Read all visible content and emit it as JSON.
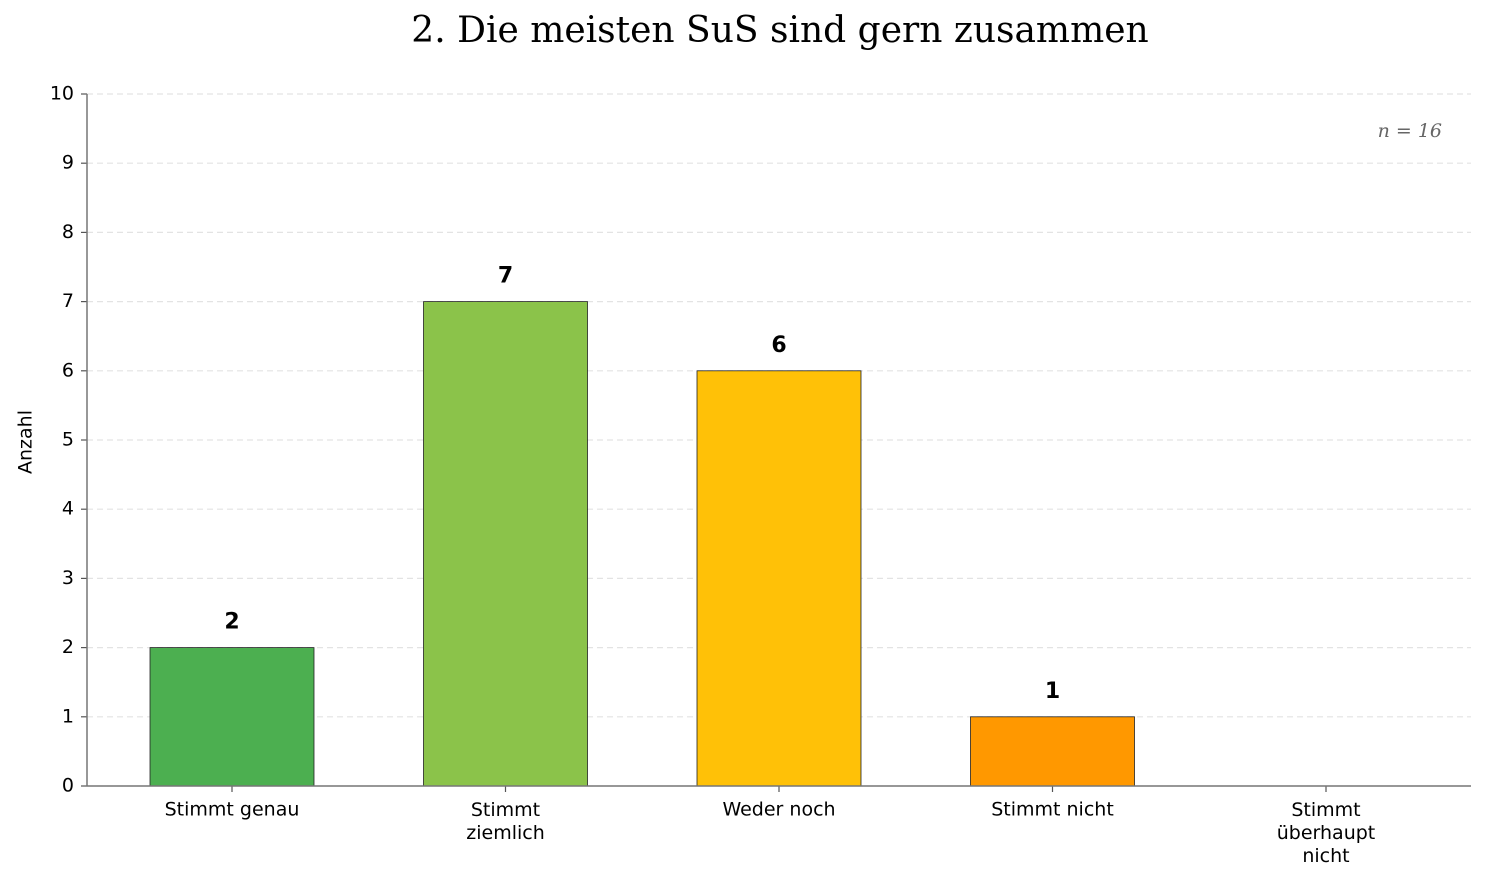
{
  "chart_data": {
    "type": "bar",
    "title": "2. Die meisten SuS sind gern zusammen",
    "y_label": "Anzahl",
    "annotation": "n = 16",
    "categories": [
      "Stimmt genau",
      "Stimmt\nziemlich",
      "Weder noch",
      "Stimmt nicht",
      "Stimmt\nüberhaupt\nnicht"
    ],
    "values": [
      2,
      7,
      6,
      1,
      0
    ],
    "colors": [
      "#4caf50",
      "#8bc34a",
      "#ffc107",
      "#ff9800",
      "#f44336"
    ],
    "ylim": [
      0,
      10
    ],
    "yticks": [
      0,
      1,
      2,
      3,
      4,
      5,
      6,
      7,
      8,
      9,
      10
    ],
    "grid": true
  }
}
